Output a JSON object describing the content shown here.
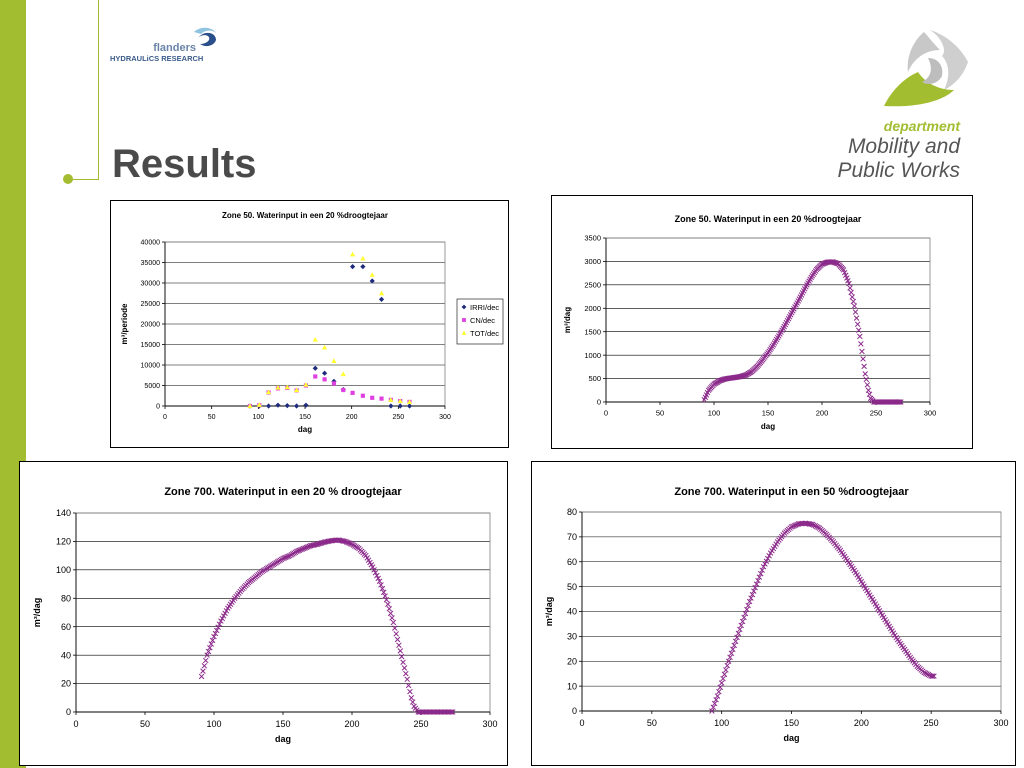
{
  "header": {
    "title": "Results",
    "logo_left": {
      "line1": "flanders",
      "line2": "HYDRAULiCS RESEARCH"
    },
    "logo_right": {
      "line1": "department",
      "line2": "Mobility and",
      "line3": "Public Works"
    }
  },
  "colors": {
    "accent": "#a3bd31",
    "irri": "#1f2b7c",
    "cn": "#e040e0",
    "tot": "#ffff33",
    "series": "#8b2a8b"
  },
  "chart_data": [
    {
      "type": "scatter",
      "title": "Zone 50. Waterinput in een 20 %droogtejaar",
      "xlabel": "dag",
      "ylabel": "m³/periode",
      "xlim": [
        0,
        300
      ],
      "ylim": [
        0,
        40000
      ],
      "xticks": [
        0,
        50,
        100,
        150,
        200,
        250,
        300
      ],
      "yticks": [
        0,
        5000,
        10000,
        15000,
        20000,
        25000,
        30000,
        35000,
        40000
      ],
      "grid": true,
      "legend": "right",
      "series": [
        {
          "name": "IRRI/dec",
          "marker": "diamond",
          "color": "#1f2b7c",
          "x": [
            91,
            101,
            111,
            121,
            131,
            141,
            151,
            161,
            171,
            181,
            191,
            201,
            212,
            222,
            232,
            242,
            252,
            262
          ],
          "y": [
            0,
            0,
            0,
            200,
            100,
            0,
            200,
            9200,
            8000,
            6000,
            4000,
            34000,
            34000,
            30500,
            26000,
            0,
            0,
            0
          ]
        },
        {
          "name": "CN/dec",
          "marker": "square",
          "color": "#e040e0",
          "x": [
            91,
            101,
            111,
            121,
            131,
            141,
            151,
            161,
            171,
            181,
            191,
            201,
            212,
            222,
            232,
            242,
            252,
            262
          ],
          "y": [
            0,
            200,
            3300,
            4300,
            4400,
            3800,
            5000,
            7200,
            6500,
            5500,
            3900,
            3200,
            2500,
            2000,
            1800,
            1500,
            1200,
            1000
          ]
        },
        {
          "name": "TOT/dec",
          "marker": "triangle",
          "color": "#ffff33",
          "x": [
            91,
            101,
            111,
            121,
            131,
            141,
            151,
            161,
            171,
            181,
            191,
            201,
            212,
            222,
            232,
            242,
            252,
            262
          ],
          "y": [
            0,
            300,
            3400,
            4500,
            4600,
            3900,
            5200,
            16200,
            14300,
            11000,
            7800,
            37000,
            36000,
            32000,
            27500,
            1500,
            1200,
            1000
          ]
        }
      ]
    },
    {
      "type": "scatter",
      "title": "Zone 50. Waterinput in een 20 %droogtejaar",
      "xlabel": "dag",
      "ylabel": "m³/dag",
      "xlim": [
        0,
        300
      ],
      "ylim": [
        0,
        3500
      ],
      "xticks": [
        0,
        50,
        100,
        150,
        200,
        250,
        300
      ],
      "yticks": [
        0,
        500,
        1000,
        1500,
        2000,
        2500,
        3000,
        3500
      ],
      "grid": true,
      "series": [
        {
          "name": "",
          "marker": "x",
          "color": "#8b2a8b",
          "x": [
            91,
            95,
            100,
            105,
            110,
            115,
            120,
            125,
            130,
            135,
            140,
            145,
            150,
            155,
            160,
            165,
            170,
            175,
            180,
            185,
            190,
            195,
            200,
            205,
            210,
            215,
            220,
            225,
            230,
            235,
            240,
            243,
            245,
            248,
            250,
            255,
            260,
            265,
            270,
            273
          ],
          "y": [
            50,
            250,
            380,
            450,
            490,
            510,
            525,
            545,
            580,
            650,
            760,
            900,
            1050,
            1220,
            1410,
            1610,
            1820,
            2030,
            2240,
            2460,
            2660,
            2830,
            2940,
            2985,
            2990,
            2950,
            2820,
            2530,
            2050,
            1400,
            600,
            250,
            80,
            0,
            0,
            0,
            0,
            0,
            0,
            0
          ]
        }
      ]
    },
    {
      "type": "scatter",
      "title": "Zone 700. Waterinput in een 20 % droogtejaar",
      "xlabel": "dag",
      "ylabel": "m³/dag",
      "xlim": [
        0,
        300
      ],
      "ylim": [
        0,
        140
      ],
      "xticks": [
        0,
        50,
        100,
        150,
        200,
        250,
        300
      ],
      "yticks": [
        0,
        20,
        40,
        60,
        80,
        100,
        120,
        140
      ],
      "grid": true,
      "series": [
        {
          "name": "",
          "marker": "x",
          "color": "#8b2a8b",
          "x": [
            91,
            95,
            100,
            105,
            110,
            115,
            120,
            125,
            130,
            135,
            140,
            145,
            150,
            155,
            160,
            165,
            170,
            175,
            180,
            185,
            190,
            195,
            200,
            205,
            210,
            215,
            220,
            225,
            230,
            235,
            240,
            243,
            245,
            248,
            250,
            255,
            260,
            265,
            270,
            273
          ],
          "y": [
            25,
            40,
            53,
            64,
            73,
            80,
            86,
            91,
            95,
            99,
            102,
            105,
            108,
            110,
            113,
            115,
            117,
            118,
            119.5,
            120.5,
            121,
            120,
            118,
            115,
            110,
            102,
            92,
            79,
            63,
            43,
            23,
            10,
            4,
            0,
            0,
            0,
            0,
            0,
            0,
            0
          ]
        }
      ]
    },
    {
      "type": "scatter",
      "title": "Zone 700. Waterinput in een 50 %droogtejaar",
      "xlabel": "dag",
      "ylabel": "m³/dag",
      "xlim": [
        0,
        300
      ],
      "ylim": [
        0,
        80
      ],
      "xticks": [
        0,
        50,
        100,
        150,
        200,
        250,
        300
      ],
      "yticks": [
        0,
        10,
        20,
        30,
        40,
        50,
        60,
        70,
        80
      ],
      "grid": true,
      "series": [
        {
          "name": "",
          "marker": "x",
          "color": "#8b2a8b",
          "x": [
            93,
            97,
            101,
            105,
            110,
            115,
            120,
            125,
            130,
            135,
            140,
            145,
            150,
            155,
            160,
            165,
            170,
            175,
            180,
            185,
            190,
            195,
            200,
            205,
            210,
            215,
            220,
            225,
            230,
            235,
            240,
            245,
            250,
            252
          ],
          "y": [
            0,
            6,
            13,
            20,
            28,
            36,
            44,
            51,
            58,
            63.5,
            68,
            71.5,
            74,
            75.2,
            75.5,
            75,
            73.5,
            71,
            68,
            64.5,
            60.5,
            56.5,
            52,
            47.5,
            43,
            38.5,
            34,
            29.5,
            25.5,
            21.5,
            18,
            15.5,
            14,
            14
          ]
        }
      ]
    }
  ]
}
